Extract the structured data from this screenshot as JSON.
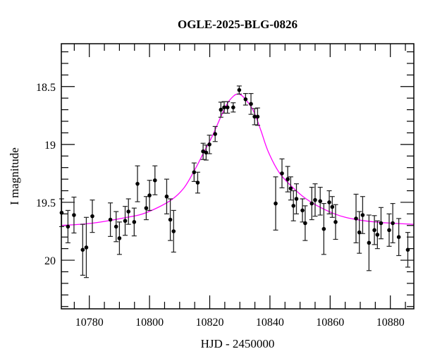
{
  "chart_data": {
    "type": "scatter",
    "title": "OGLE-2025-BLG-0826",
    "xlabel": "HJD - 2450000",
    "ylabel": "I magnitude",
    "xlim": [
      10770.7,
      10887.8
    ],
    "ylim": [
      18.13,
      20.42
    ],
    "y_inverted": true,
    "grid": false,
    "x_ticks": [
      10780,
      10800,
      10820,
      10840,
      10860,
      10880
    ],
    "x_tick_labels": [
      "10780",
      "10800",
      "10820",
      "10840",
      "10860",
      "10880"
    ],
    "x_minor_step": 5,
    "y_ticks": [
      18.5,
      19,
      19.5,
      20
    ],
    "y_tick_labels": [
      "18.5",
      "19",
      "19.5",
      "20"
    ],
    "y_minor_step": 0.1,
    "colors": {
      "points": "#000000",
      "model": "#ff00ff"
    },
    "series": [
      {
        "kind": "points_with_errorbars",
        "x": [
          10770.8,
          10772.9,
          10774.9,
          10777.8,
          10779.0,
          10781.0,
          10787.0,
          10788.9,
          10790.0,
          10791.9,
          10793.0,
          10794.9,
          10796.0,
          10798.9,
          10800.0,
          10801.8,
          10805.7,
          10806.9,
          10808.0,
          10814.8,
          10816.0,
          10817.8,
          10818.8,
          10819.9,
          10821.8,
          10823.7,
          10824.8,
          10825.9,
          10827.8,
          10829.8,
          10831.9,
          10833.7,
          10834.9,
          10835.9,
          10841.9,
          10844.0,
          10845.9,
          10846.9,
          10847.8,
          10848.8,
          10850.8,
          10851.7,
          10853.9,
          10855.0,
          10856.7,
          10857.9,
          10859.7,
          10860.7,
          10861.8,
          10868.6,
          10869.7,
          10870.8,
          10872.9,
          10874.7,
          10875.7,
          10876.9,
          10879.6,
          10880.8,
          10882.8,
          10885.8
        ],
        "y": [
          19.59,
          19.71,
          19.61,
          19.91,
          19.89,
          19.62,
          19.65,
          19.71,
          19.81,
          19.66,
          19.58,
          19.67,
          19.34,
          19.55,
          19.44,
          19.31,
          19.45,
          19.65,
          19.75,
          19.24,
          19.33,
          19.06,
          19.07,
          19.0,
          18.91,
          18.7,
          18.68,
          18.68,
          18.68,
          18.53,
          18.61,
          18.65,
          18.76,
          18.76,
          19.51,
          19.25,
          19.3,
          19.38,
          19.53,
          19.47,
          19.57,
          19.68,
          19.51,
          19.48,
          19.49,
          19.73,
          19.5,
          19.54,
          19.67,
          19.64,
          19.76,
          19.61,
          19.85,
          19.74,
          19.78,
          19.68,
          19.74,
          19.68,
          19.8,
          19.91
        ],
        "err": [
          0.12,
          0.14,
          0.155,
          0.22,
          0.26,
          0.14,
          0.145,
          0.13,
          0.14,
          0.125,
          0.11,
          0.12,
          0.155,
          0.1,
          0.13,
          0.125,
          0.15,
          0.18,
          0.18,
          0.08,
          0.09,
          0.07,
          0.065,
          0.08,
          0.065,
          0.065,
          0.05,
          0.05,
          0.04,
          0.035,
          0.05,
          0.09,
          0.07,
          0.075,
          0.23,
          0.125,
          0.11,
          0.1,
          0.13,
          0.13,
          0.1,
          0.15,
          0.14,
          0.14,
          0.12,
          0.22,
          0.1,
          0.09,
          0.15,
          0.21,
          0.18,
          0.16,
          0.24,
          0.125,
          0.12,
          0.135,
          0.14,
          0.17,
          0.16,
          0.15
        ]
      },
      {
        "kind": "model_curve",
        "x": [
          10770.7,
          10781,
          10792.5,
          10798.8,
          10806.6,
          10811.3,
          10815,
          10818,
          10821,
          10823.7,
          10826,
          10828,
          10829.2,
          10830.5,
          10832.5,
          10834.7,
          10837,
          10839.4,
          10843,
          10847.1,
          10852,
          10858,
          10865.1,
          10875,
          10887.8
        ],
        "y": [
          19.7,
          19.68,
          19.63,
          19.59,
          19.49,
          19.38,
          19.22,
          19.07,
          18.92,
          18.76,
          18.64,
          18.58,
          18.565,
          18.575,
          18.63,
          18.72,
          18.88,
          19.06,
          19.24,
          19.36,
          19.47,
          19.56,
          19.63,
          19.67,
          19.69
        ]
      }
    ]
  }
}
